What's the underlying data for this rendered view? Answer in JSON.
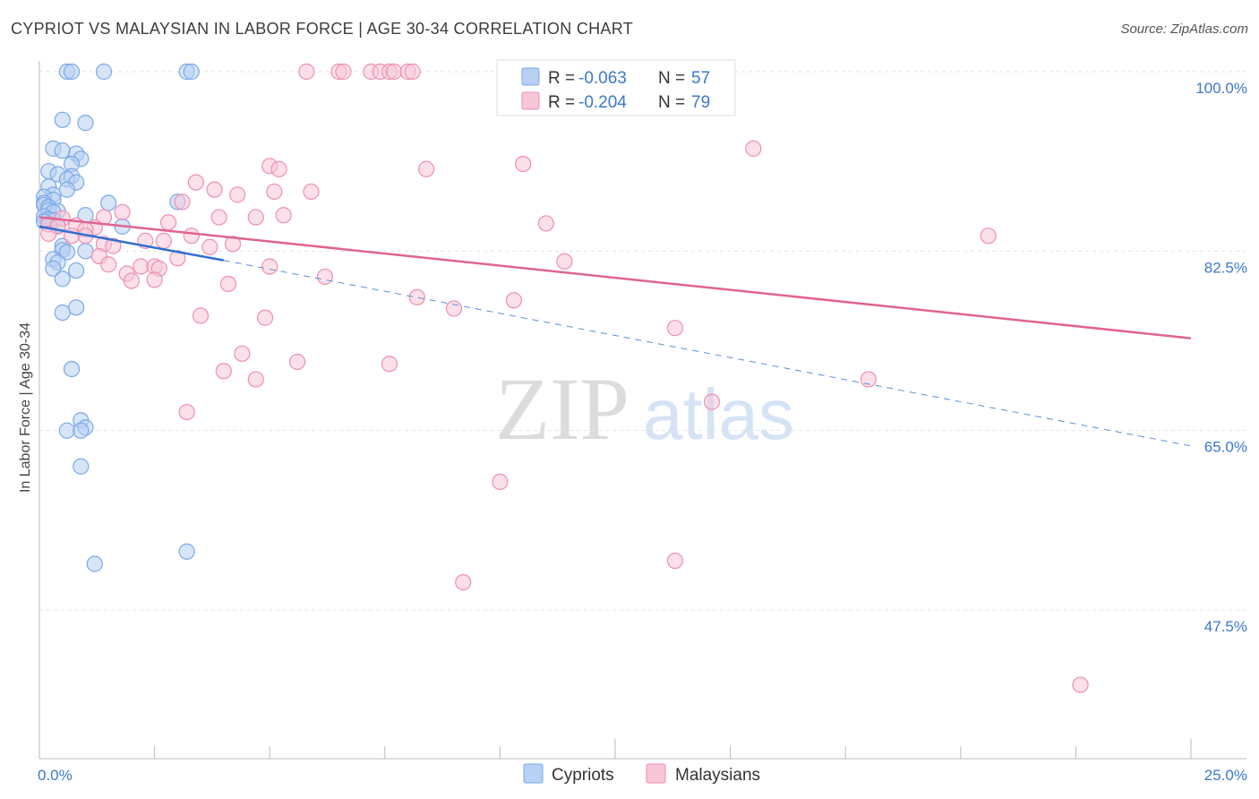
{
  "header": {
    "title": "CYPRIOT VS MALAYSIAN IN LABOR FORCE | AGE 30-34 CORRELATION CHART",
    "source": "Source: ZipAtlas.com"
  },
  "chart_data": {
    "type": "scatter",
    "ylabel": "In Labor Force | Age 30-34",
    "xlim": [
      0,
      25
    ],
    "ylim": [
      33,
      100
    ],
    "x_tick_labels": [
      "0.0%",
      "25.0%"
    ],
    "y_ticks": [
      {
        "value": 100.0,
        "label": "100.0%"
      },
      {
        "value": 82.5,
        "label": "82.5%"
      },
      {
        "value": 65.0,
        "label": "65.0%"
      },
      {
        "value": 47.5,
        "label": "47.5%"
      }
    ],
    "grid": "horizontal dashed",
    "watermark": {
      "zip": "ZIP",
      "atlas": "atlas"
    },
    "legend": {
      "placement": "top-center",
      "rows": [
        {
          "r_label": "R = ",
          "r_value": "-0.063",
          "n_label": "N = ",
          "n_value": "57"
        },
        {
          "r_label": "R = ",
          "r_value": "-0.204",
          "n_label": "N = ",
          "n_value": "79"
        }
      ]
    },
    "series": [
      {
        "name": "Cypriots",
        "color": "#7aa8e8",
        "fill": "#b7d0f3",
        "trend": {
          "x": [
            0.0,
            4.0
          ],
          "y": [
            84.9,
            81.6
          ],
          "extended_to": [
            25.0,
            63.5
          ]
        },
        "points": [
          [
            0.6,
            100
          ],
          [
            0.7,
            100
          ],
          [
            1.4,
            100
          ],
          [
            3.2,
            100
          ],
          [
            3.3,
            100
          ],
          [
            0.5,
            95.3
          ],
          [
            1.0,
            95.0
          ],
          [
            0.3,
            92.5
          ],
          [
            0.5,
            92.3
          ],
          [
            0.8,
            92.0
          ],
          [
            0.9,
            91.5
          ],
          [
            0.7,
            91.0
          ],
          [
            0.2,
            90.3
          ],
          [
            0.4,
            90.0
          ],
          [
            0.7,
            89.8
          ],
          [
            0.6,
            89.5
          ],
          [
            0.8,
            89.2
          ],
          [
            0.2,
            88.8
          ],
          [
            0.6,
            88.5
          ],
          [
            0.3,
            88.0
          ],
          [
            0.1,
            87.8
          ],
          [
            0.3,
            87.5
          ],
          [
            0.1,
            87.2
          ],
          [
            1.5,
            87.2
          ],
          [
            3.0,
            87.3
          ],
          [
            0.1,
            87.0
          ],
          [
            0.2,
            86.8
          ],
          [
            0.2,
            86.5
          ],
          [
            0.4,
            86.4
          ],
          [
            0.3,
            86.3
          ],
          [
            1.0,
            86.0
          ],
          [
            0.1,
            85.9
          ],
          [
            0.2,
            85.6
          ],
          [
            0.3,
            85.5
          ],
          [
            0.1,
            85.4
          ],
          [
            0.2,
            85.1
          ],
          [
            0.4,
            85.0
          ],
          [
            1.8,
            84.9
          ],
          [
            0.5,
            83.0
          ],
          [
            0.5,
            82.6
          ],
          [
            1.0,
            82.5
          ],
          [
            0.6,
            82.4
          ],
          [
            0.3,
            81.7
          ],
          [
            0.4,
            81.4
          ],
          [
            0.3,
            80.8
          ],
          [
            0.8,
            80.6
          ],
          [
            0.5,
            79.8
          ],
          [
            0.8,
            77.0
          ],
          [
            0.5,
            76.5
          ],
          [
            0.7,
            71.0
          ],
          [
            0.9,
            66.0
          ],
          [
            1.0,
            65.3
          ],
          [
            0.6,
            65.0
          ],
          [
            0.9,
            65.0
          ],
          [
            0.9,
            61.5
          ],
          [
            1.2,
            52.0
          ],
          [
            3.2,
            53.2
          ]
        ]
      },
      {
        "name": "Malaysians",
        "color": "#ee8fb0",
        "fill": "#f8c6d7",
        "trend": {
          "x": [
            0.0,
            25.0
          ],
          "y": [
            85.8,
            74.0
          ]
        },
        "points": [
          [
            5.8,
            100
          ],
          [
            6.5,
            100
          ],
          [
            6.6,
            100
          ],
          [
            7.2,
            100
          ],
          [
            7.4,
            100
          ],
          [
            7.6,
            100
          ],
          [
            7.7,
            100
          ],
          [
            8.0,
            100
          ],
          [
            8.1,
            100
          ],
          [
            11.2,
            100
          ],
          [
            11.6,
            100
          ],
          [
            12.5,
            100
          ],
          [
            14.3,
            100
          ],
          [
            15.5,
            92.5
          ],
          [
            10.5,
            91.0
          ],
          [
            5.0,
            90.8
          ],
          [
            5.2,
            90.5
          ],
          [
            8.4,
            90.5
          ],
          [
            3.4,
            89.2
          ],
          [
            3.8,
            88.5
          ],
          [
            5.1,
            88.3
          ],
          [
            5.9,
            88.3
          ],
          [
            4.3,
            88.0
          ],
          [
            3.1,
            87.3
          ],
          [
            1.8,
            86.3
          ],
          [
            5.3,
            86.0
          ],
          [
            1.4,
            85.8
          ],
          [
            3.9,
            85.8
          ],
          [
            4.7,
            85.8
          ],
          [
            0.5,
            85.7
          ],
          [
            2.8,
            85.3
          ],
          [
            11.0,
            85.2
          ],
          [
            0.2,
            85.1
          ],
          [
            0.8,
            85.0
          ],
          [
            0.4,
            84.9
          ],
          [
            1.2,
            84.8
          ],
          [
            1.0,
            84.6
          ],
          [
            0.2,
            84.2
          ],
          [
            1.0,
            84.0
          ],
          [
            3.3,
            84.0
          ],
          [
            0.7,
            84.0
          ],
          [
            20.6,
            84.0
          ],
          [
            2.3,
            83.5
          ],
          [
            2.7,
            83.5
          ],
          [
            1.4,
            83.2
          ],
          [
            4.2,
            83.2
          ],
          [
            1.6,
            83.0
          ],
          [
            3.7,
            82.9
          ],
          [
            1.3,
            82.0
          ],
          [
            3.0,
            81.8
          ],
          [
            11.4,
            81.5
          ],
          [
            1.5,
            81.2
          ],
          [
            2.2,
            81.0
          ],
          [
            5.0,
            81.0
          ],
          [
            2.5,
            81.0
          ],
          [
            2.6,
            80.8
          ],
          [
            1.9,
            80.3
          ],
          [
            6.2,
            80.0
          ],
          [
            2.5,
            79.7
          ],
          [
            2.0,
            79.6
          ],
          [
            4.1,
            79.3
          ],
          [
            8.2,
            78.0
          ],
          [
            10.3,
            77.7
          ],
          [
            9.0,
            76.9
          ],
          [
            3.5,
            76.2
          ],
          [
            4.9,
            76.0
          ],
          [
            13.8,
            75.0
          ],
          [
            4.4,
            72.5
          ],
          [
            5.6,
            71.7
          ],
          [
            7.6,
            71.5
          ],
          [
            4.0,
            70.8
          ],
          [
            4.7,
            70.0
          ],
          [
            18.0,
            70.0
          ],
          [
            14.6,
            67.8
          ],
          [
            3.2,
            66.8
          ],
          [
            10.0,
            60.0
          ],
          [
            9.2,
            50.2
          ],
          [
            13.8,
            52.3
          ],
          [
            22.6,
            40.2
          ]
        ]
      }
    ]
  }
}
